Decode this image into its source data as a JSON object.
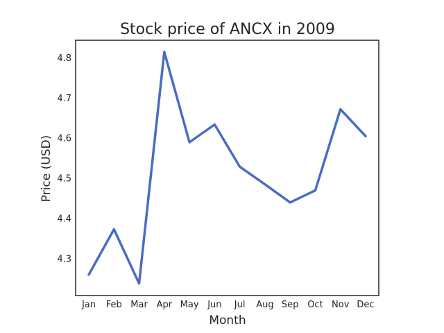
{
  "chart_data": {
    "type": "line",
    "title": "Stock price of ANCX in 2009",
    "xlabel": "Month",
    "ylabel": "Price (USD)",
    "categories": [
      "Jan",
      "Feb",
      "Mar",
      "Apr",
      "May",
      "Jun",
      "Jul",
      "Aug",
      "Sep",
      "Oct",
      "Nov",
      "Dec"
    ],
    "series": [
      {
        "values": [
          4.26,
          4.373,
          4.238,
          4.815,
          4.59,
          4.634,
          4.529,
          4.485,
          4.44,
          4.47,
          4.672,
          4.605
        ],
        "color": "#4a6cc4"
      }
    ],
    "yticks": [
      "4.3",
      "4.4",
      "4.5",
      "4.6",
      "4.7",
      "4.8"
    ],
    "ytick_values": [
      4.3,
      4.4,
      4.5,
      4.6,
      4.7,
      4.8
    ],
    "ylim": [
      4.208,
      4.844
    ],
    "grid": false,
    "legend": "none"
  }
}
